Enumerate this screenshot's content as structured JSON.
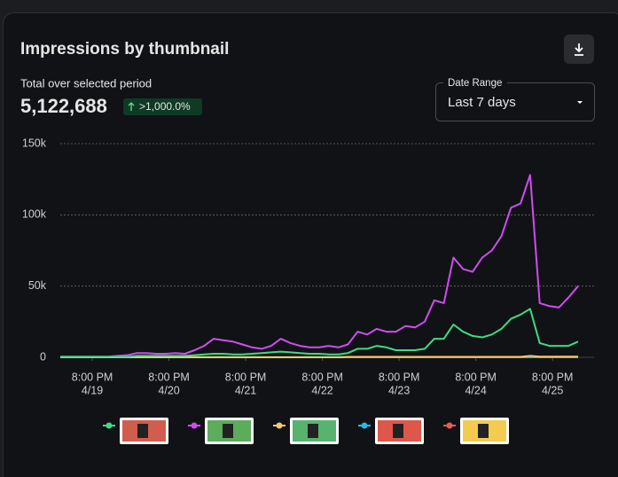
{
  "header": {
    "title": "Impressions by thumbnail",
    "total_label": "Total over selected period",
    "total": "5,122,688",
    "change": ">1,000.0%"
  },
  "date_range": {
    "label": "Date Range",
    "value": "Last 7 days"
  },
  "chart_data": {
    "type": "line",
    "x": [
      10,
      13,
      16,
      19,
      22,
      25,
      28,
      31,
      34,
      37,
      40,
      43,
      46,
      49,
      52,
      55,
      58,
      61,
      64,
      67,
      70,
      73,
      76,
      79,
      82,
      85,
      88,
      91,
      94,
      97,
      100,
      103,
      106,
      109,
      112,
      115,
      118,
      121,
      124,
      127,
      130,
      133,
      136,
      139,
      142,
      145,
      148,
      151,
      154,
      157,
      160,
      163,
      166,
      169,
      172
    ],
    "xlim": [
      10,
      172
    ],
    "xticks": [
      {
        "value": 20,
        "label": [
          "8:00 PM",
          "4/19"
        ]
      },
      {
        "value": 44,
        "label": [
          "8:00 PM",
          "4/20"
        ]
      },
      {
        "value": 68,
        "label": [
          "8:00 PM",
          "4/21"
        ]
      },
      {
        "value": 92,
        "label": [
          "8:00 PM",
          "4/22"
        ]
      },
      {
        "value": 116,
        "label": [
          "8:00 PM",
          "4/23"
        ]
      },
      {
        "value": 140,
        "label": [
          "8:00 PM",
          "4/24"
        ]
      },
      {
        "value": 164,
        "label": [
          "8:00 PM",
          "4/25"
        ]
      }
    ],
    "ylim": [
      0,
      150000
    ],
    "yticks": [
      0,
      {
        "value": 50000,
        "label": "50k"
      },
      {
        "value": 100000,
        "label": "100k"
      },
      {
        "value": 150000,
        "label": "150k"
      }
    ],
    "grid": true,
    "series": [
      {
        "color": "#3ddc84",
        "values": [
          300,
          300,
          300,
          300,
          300,
          300,
          300,
          300,
          1000,
          1000,
          1000,
          1000,
          1000,
          1000,
          1500,
          2000,
          2500,
          2500,
          2000,
          2000,
          2500,
          3000,
          3500,
          4000,
          3500,
          3000,
          2500,
          2500,
          2000,
          2000,
          3000,
          6000,
          6000,
          8000,
          7000,
          5000,
          5000,
          5000,
          6000,
          13000,
          13000,
          23000,
          18000,
          15000,
          14000,
          16000,
          20000,
          27000,
          30000,
          34000,
          10000,
          8000,
          8000,
          8000,
          11000
        ]
      },
      {
        "color": "#d04cf0",
        "values": [
          500,
          500,
          500,
          500,
          500,
          500,
          1000,
          1500,
          3000,
          3000,
          2500,
          2500,
          3000,
          2500,
          5000,
          8000,
          13000,
          12000,
          11000,
          9000,
          7000,
          6000,
          8000,
          13000,
          10000,
          8000,
          7000,
          7000,
          8000,
          7000,
          9000,
          18000,
          16000,
          20000,
          18000,
          18000,
          22000,
          21000,
          25000,
          40000,
          38000,
          70000,
          62000,
          60000,
          70000,
          75000,
          85000,
          105000,
          108000,
          128000,
          38000,
          36000,
          35000,
          42000,
          50000
        ]
      },
      {
        "color": "#f5c96a",
        "values": [
          0,
          0,
          0,
          0,
          0,
          0,
          0,
          0,
          0,
          0,
          0,
          0,
          0,
          0,
          0,
          0,
          0,
          0,
          0,
          0,
          0,
          0,
          0,
          0,
          0,
          0,
          0,
          0,
          0,
          0,
          300,
          300,
          300,
          300,
          300,
          300,
          300,
          300,
          300,
          300,
          300,
          300,
          300,
          300,
          300,
          300,
          300,
          300,
          300,
          1000,
          500,
          500,
          500,
          500,
          500
        ]
      },
      {
        "color": "#29b6e8",
        "values": [
          100,
          100,
          100,
          100,
          100,
          100,
          100,
          100,
          100,
          100,
          100,
          100,
          100,
          100,
          100,
          100,
          100,
          100,
          100,
          100,
          100,
          100,
          100,
          100,
          100,
          100,
          100,
          100,
          100,
          100,
          100,
          100,
          100,
          100,
          100,
          100,
          100,
          100,
          100,
          100,
          100,
          100,
          100,
          100,
          100,
          100,
          100,
          100,
          100,
          100,
          100,
          100,
          100,
          100,
          100
        ]
      },
      {
        "color": "#f0574f",
        "values": [
          0,
          0,
          0,
          0,
          0,
          0,
          0,
          0,
          0,
          0,
          0,
          0,
          0,
          0,
          0,
          0,
          0,
          0,
          0,
          0,
          0,
          0,
          0,
          0,
          0,
          0,
          0,
          0,
          0,
          0,
          0,
          0,
          0,
          0,
          0,
          0,
          0,
          0,
          0,
          0,
          0,
          0,
          0,
          0,
          0,
          0,
          0,
          0,
          0,
          0,
          0,
          0,
          0,
          0,
          0
        ]
      }
    ]
  }
}
